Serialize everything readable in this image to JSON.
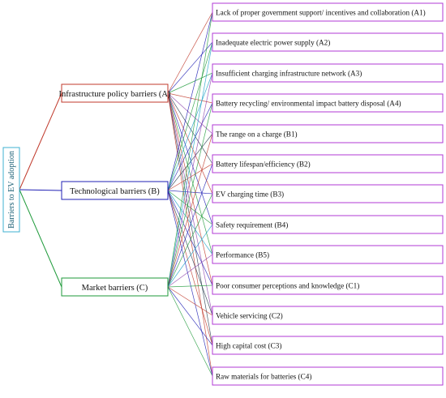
{
  "goal": {
    "label": "Barriers to EV adoption"
  },
  "categories": [
    {
      "id": "A",
      "label": "Infrastructure policy barriers (A)",
      "color": "#c0392b"
    },
    {
      "id": "B",
      "label": "Technological barriers  (B)",
      "color": "#1f1fb4"
    },
    {
      "id": "C",
      "label": "Market barriers  (C)",
      "color": "#1e9a3a"
    }
  ],
  "barriers": [
    {
      "label": "Lack of proper government support/ incentives and collaboration  (A1)"
    },
    {
      "label": "Inadequate electric power supply  (A2)"
    },
    {
      "label": "Insufficient charging infrastructure network  (A3)"
    },
    {
      "label": "Battery recycling/ environmental impact battery disposal (A4)"
    },
    {
      "label": "The range on a charge (B1)"
    },
    {
      "label": "Battery lifespan/efficiency (B2)"
    },
    {
      "label": "EV charging time  (B3)"
    },
    {
      "label": "Safety requirement (B4)"
    },
    {
      "label": "Performance (B5)"
    },
    {
      "label": "Poor consumer perceptions and knowledge (C1)"
    },
    {
      "label": "Vehicle servicing (C2)"
    },
    {
      "label": "High capital cost (C3)"
    },
    {
      "label": "Raw materials for batteries (C4)"
    }
  ],
  "colors": {
    "goal_border": "#3fb0d0",
    "barrier_border": "#b03ad6",
    "fan_lines": [
      "#c0392b",
      "#1f1fb4",
      "#1e9a3a",
      "#1aa0c8",
      "#8e44ad",
      "#2c3e50"
    ]
  }
}
